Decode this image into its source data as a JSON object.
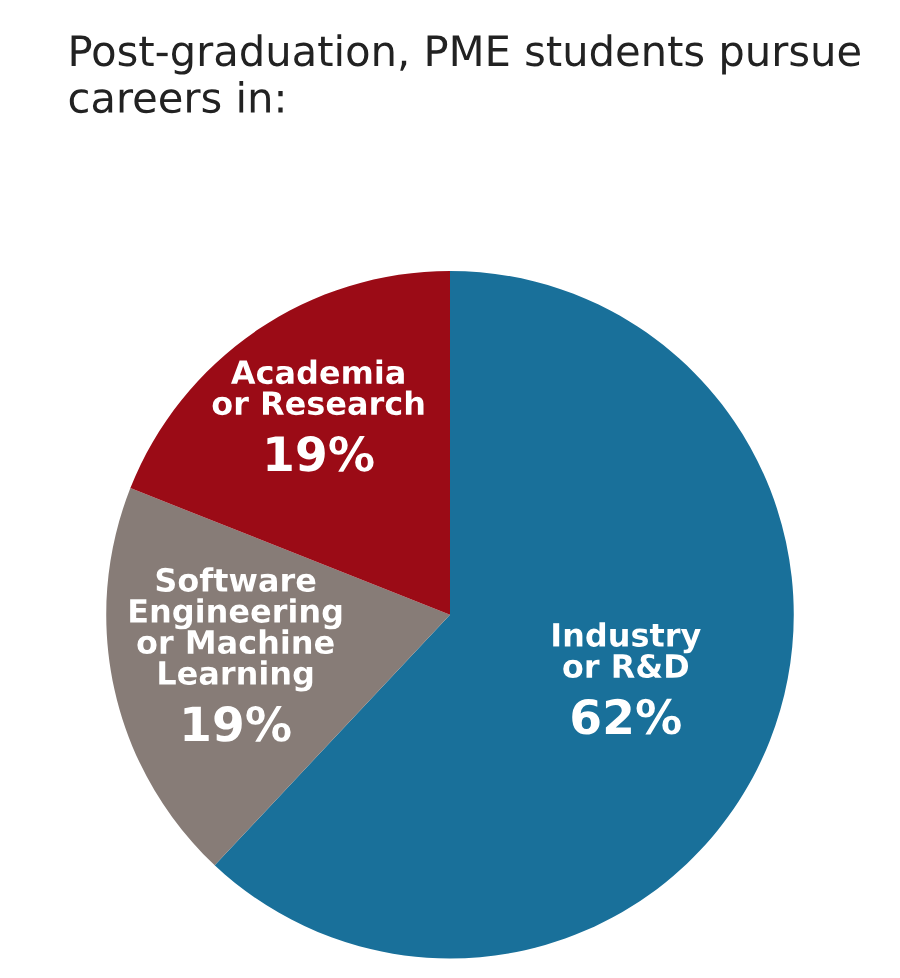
{
  "chart_data": {
    "type": "pie",
    "title": "Post-graduation, PME students pursue careers in:",
    "categories": [
      "Industry\nor R&D",
      "Software\nEngineering\nor Machine\nLearning",
      "Academia\nor Research"
    ],
    "values": [
      62,
      19,
      19
    ],
    "value_labels": [
      "62%",
      "19%",
      "19%"
    ],
    "colors": [
      "#19709a",
      "#877c77",
      "#9b0b16"
    ],
    "legend": false
  }
}
